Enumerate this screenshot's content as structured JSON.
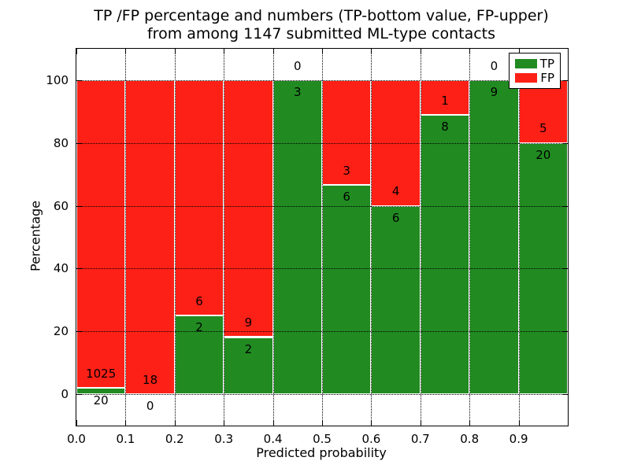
{
  "title": {
    "line1": "TP /FP percentage and numbers (TP-bottom value, FP-upper)",
    "line2": "from among 1147 submitted ML-type contacts"
  },
  "axes": {
    "xlabel": "Predicted probability",
    "ylabel": "Percentage",
    "x_ticks": [
      "0.0",
      "0.1",
      "0.2",
      "0.3",
      "0.4",
      "0.5",
      "0.6",
      "0.7",
      "0.8",
      "0.9"
    ],
    "y_ticks": [
      "0",
      "20",
      "40",
      "60",
      "80",
      "100"
    ],
    "y_tick_values": [
      0,
      20,
      40,
      60,
      80,
      100
    ]
  },
  "legend": {
    "entries": [
      {
        "label": "TP",
        "color": "#218b21"
      },
      {
        "label": "FP",
        "color": "#fd2016"
      }
    ]
  },
  "colors": {
    "tp": "#218b21",
    "fp": "#fd2016",
    "grid": "#000000",
    "bar_edge": "#ffffff",
    "background": "#ffffff"
  },
  "chart_data": {
    "type": "bar",
    "stacked": true,
    "title": "TP /FP percentage and numbers (TP-bottom value, FP-upper)\nfrom among 1147 submitted ML-type contacts",
    "xlabel": "Predicted probability",
    "ylabel": "Percentage",
    "xlim": [
      0.0,
      1.0
    ],
    "ylim": [
      -10,
      110
    ],
    "grid": true,
    "legend_position": "upper right",
    "total_submitted": 1147,
    "categories": [
      "0.0-0.1",
      "0.1-0.2",
      "0.2-0.3",
      "0.3-0.4",
      "0.4-0.5",
      "0.5-0.6",
      "0.6-0.7",
      "0.7-0.8",
      "0.8-0.9",
      "0.9-1.0"
    ],
    "series": [
      {
        "name": "TP",
        "counts": [
          20,
          0,
          2,
          2,
          3,
          6,
          6,
          8,
          9,
          20
        ],
        "pct": [
          1.91,
          0,
          25,
          18.18,
          100,
          66.67,
          60,
          88.89,
          100,
          80
        ]
      },
      {
        "name": "FP",
        "counts": [
          1025,
          18,
          6,
          9,
          0,
          3,
          4,
          1,
          0,
          5
        ],
        "pct": [
          98.09,
          100,
          75,
          81.82,
          0,
          33.33,
          40,
          11.11,
          0,
          20
        ]
      }
    ]
  }
}
